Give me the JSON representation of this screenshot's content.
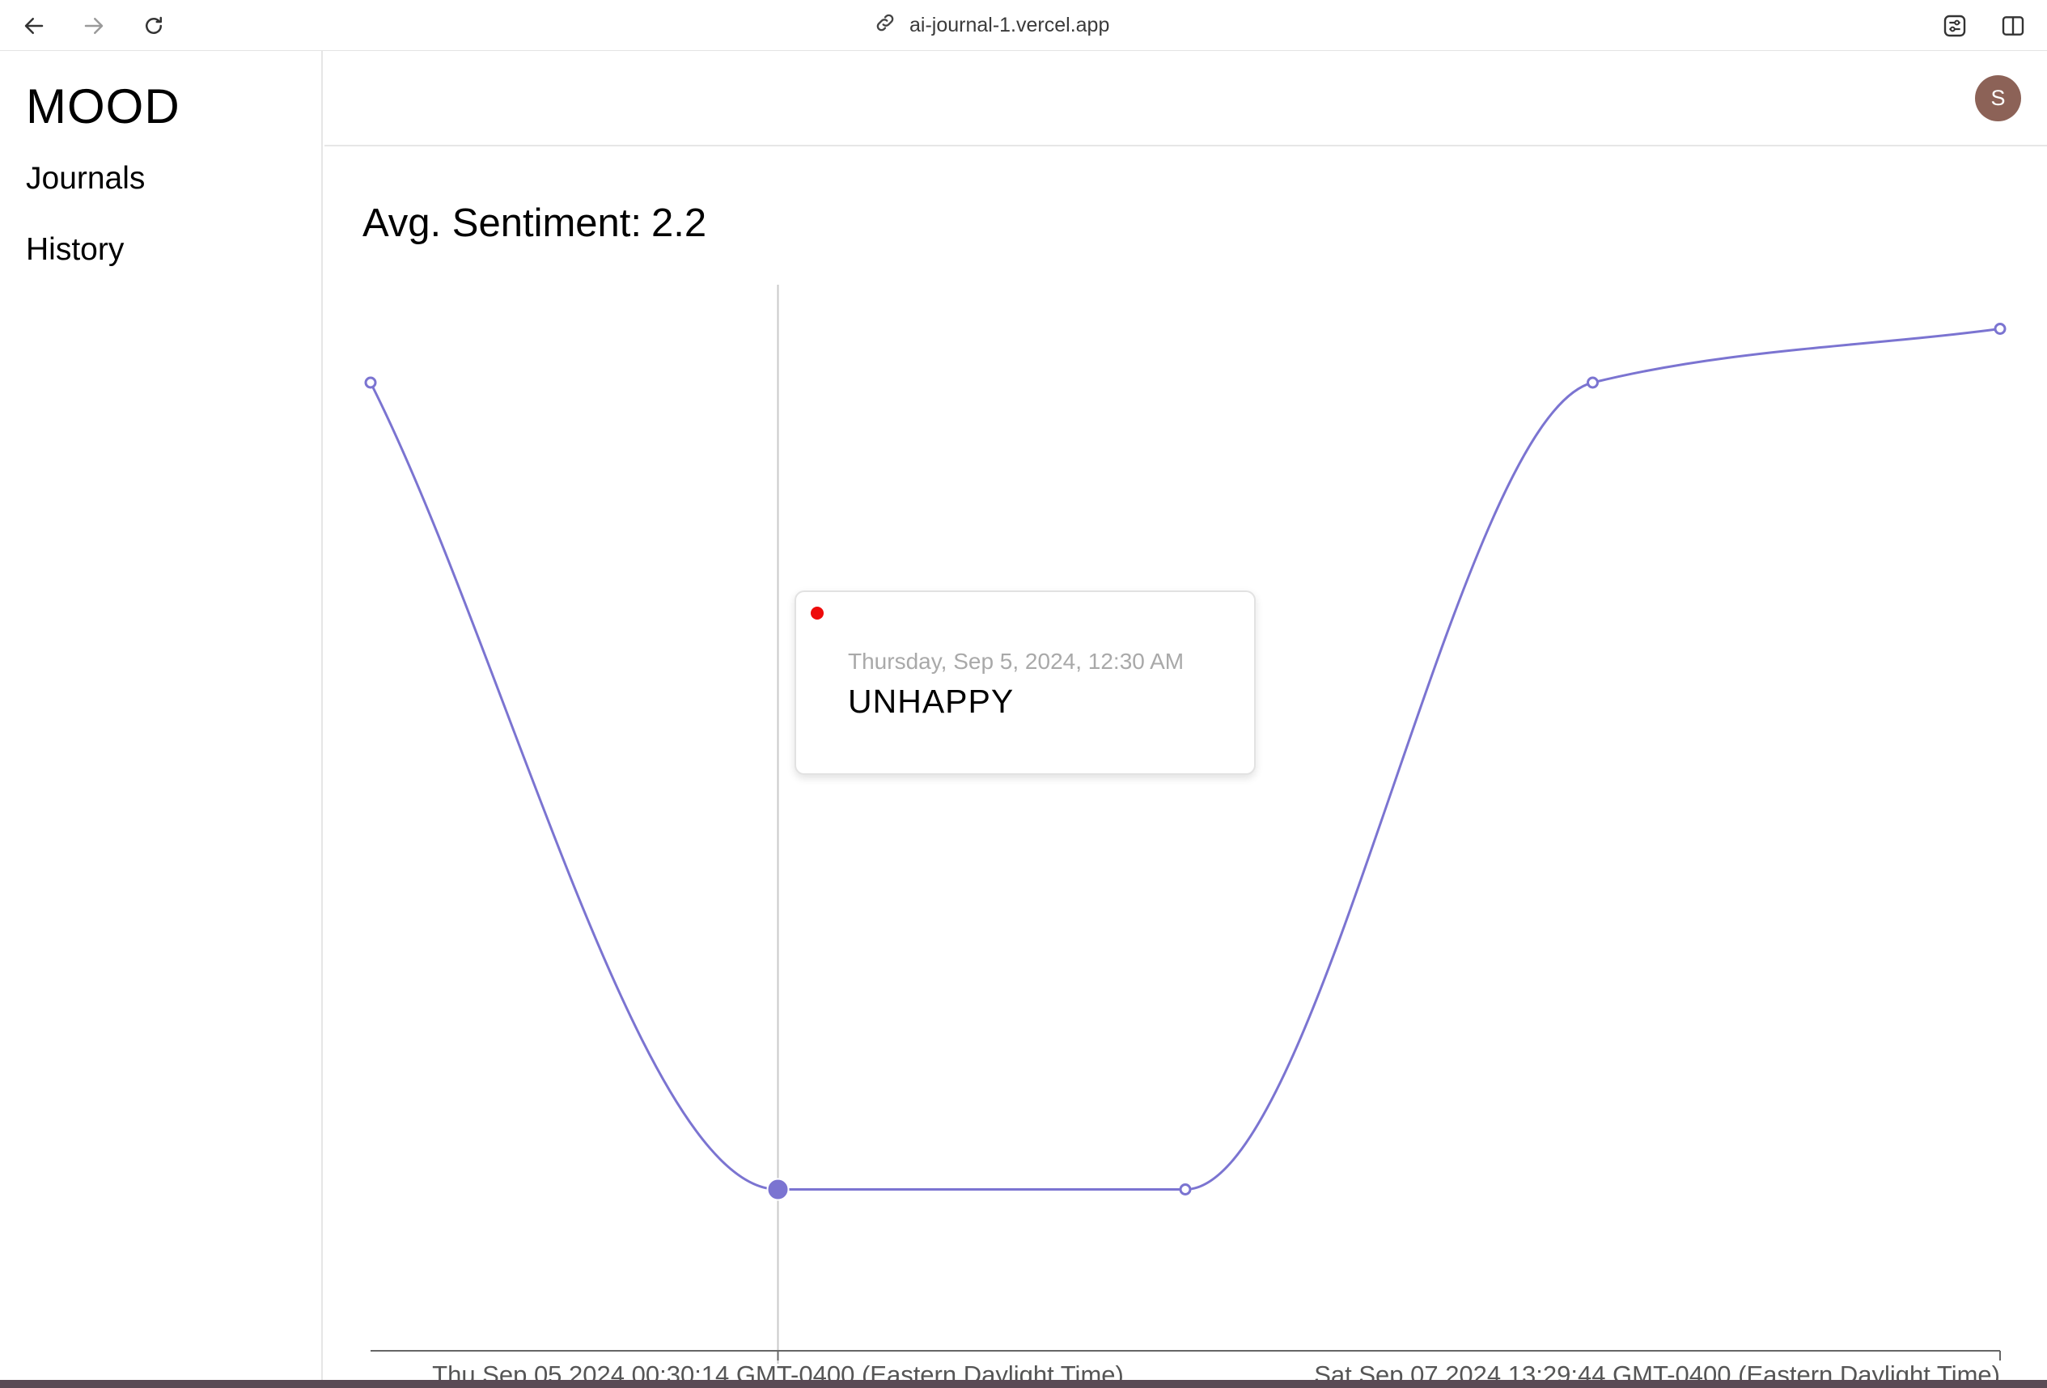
{
  "browser": {
    "url": "ai-journal-1.vercel.app",
    "icons": [
      "back-arrow-icon",
      "forward-arrow-icon",
      "reload-icon",
      "link-icon",
      "settings-sliders-icon",
      "sidebar-toggle-icon"
    ]
  },
  "sidebar": {
    "logo": "MOOD",
    "items": [
      {
        "label": "Journals"
      },
      {
        "label": "History"
      }
    ]
  },
  "header": {
    "avatar_initial": "S",
    "avatar_color": "#8c6257"
  },
  "main": {
    "avg_label": "Avg. Sentiment:",
    "avg_value": "2.2"
  },
  "tooltip": {
    "date": "Thursday, Sep 5, 2024, 12:30 AM",
    "mood": "UNHAPPY",
    "dot_color": "#ee0b0b"
  },
  "chart_data": {
    "type": "line",
    "series": [
      {
        "color": "#7b74d1",
        "values": [
          8,
          -7,
          -7,
          8,
          9
        ]
      }
    ],
    "x_ticks": [
      "Thu Sep 05 2024 00:30:14 GMT-0400 (Eastern Daylight Time)",
      "Sat Sep 07 2024 13:29:44 GMT-0400 (Eastern Daylight Time)"
    ],
    "active_index": 1,
    "ylim": [
      -10,
      10
    ],
    "grid": false,
    "legend": "none"
  }
}
